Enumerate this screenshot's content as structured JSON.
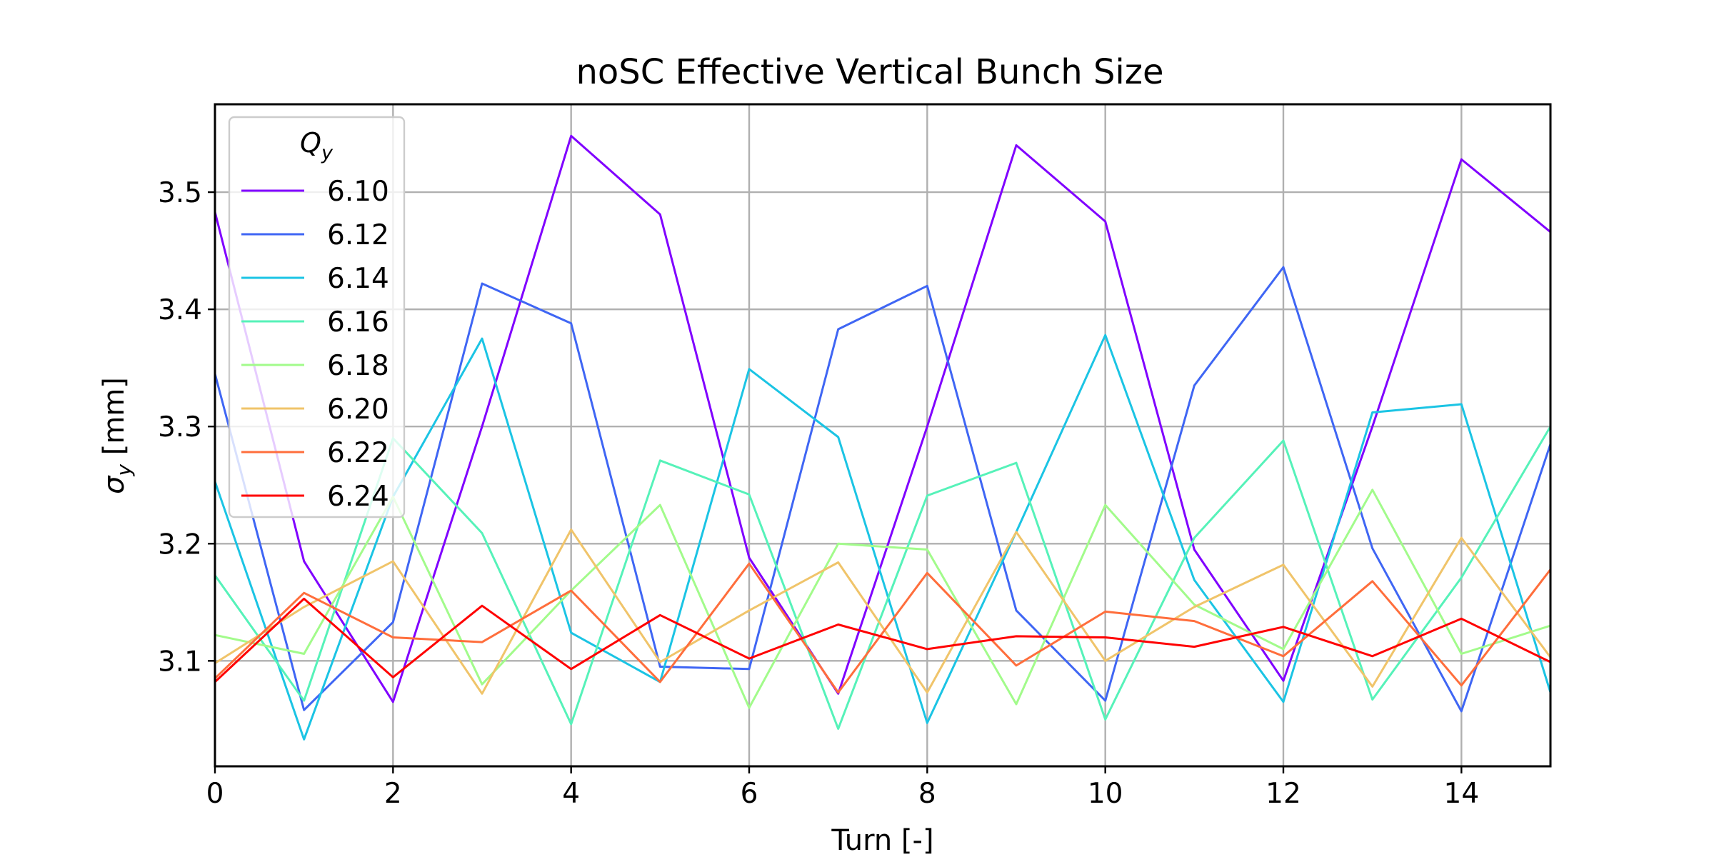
{
  "chart_data": {
    "type": "line",
    "title": "noSC Effective Vertical Bunch Size",
    "xlabel": "Turn [-]",
    "ylabel_main": "σ",
    "ylabel_sub": "y",
    "ylabel_unit": " [mm]",
    "xlim": [
      0,
      15
    ],
    "ylim": [
      3.01,
      3.575
    ],
    "xticks": [
      0,
      2,
      4,
      6,
      8,
      10,
      12,
      14
    ],
    "yticks": [
      3.1,
      3.2,
      3.3,
      3.4,
      3.5
    ],
    "ytick_labels": [
      "3.1",
      "3.2",
      "3.3",
      "3.4",
      "3.5"
    ],
    "grid": true,
    "legend": {
      "placement": "upper-left",
      "title_main": "Q",
      "title_sub": "y"
    },
    "x": [
      0,
      1,
      2,
      3,
      4,
      5,
      6,
      7,
      8,
      9,
      10,
      11,
      12,
      13,
      14,
      15
    ],
    "series": [
      {
        "name": "6.10",
        "color": "#8000ff",
        "values": [
          3.483,
          3.185,
          3.065,
          3.3,
          3.548,
          3.481,
          3.188,
          3.072,
          3.3,
          3.54,
          3.475,
          3.195,
          3.083,
          3.3,
          3.528,
          3.466
        ]
      },
      {
        "name": "6.12",
        "color": "#3f66f4",
        "values": [
          3.345,
          3.058,
          3.133,
          3.422,
          3.388,
          3.095,
          3.093,
          3.383,
          3.42,
          3.143,
          3.066,
          3.335,
          3.436,
          3.196,
          3.057,
          3.285
        ]
      },
      {
        "name": "6.14",
        "color": "#1bc4e4",
        "values": [
          3.253,
          3.033,
          3.24,
          3.375,
          3.124,
          3.082,
          3.349,
          3.291,
          3.047,
          3.21,
          3.378,
          3.169,
          3.065,
          3.312,
          3.319,
          3.073
        ]
      },
      {
        "name": "6.16",
        "color": "#56f2b9",
        "values": [
          3.173,
          3.066,
          3.29,
          3.209,
          3.046,
          3.271,
          3.242,
          3.042,
          3.241,
          3.269,
          3.05,
          3.205,
          3.288,
          3.067,
          3.171,
          3.3
        ]
      },
      {
        "name": "6.18",
        "color": "#a2fb8b",
        "values": [
          3.122,
          3.106,
          3.24,
          3.08,
          3.16,
          3.233,
          3.06,
          3.2,
          3.195,
          3.063,
          3.233,
          3.148,
          3.11,
          3.246,
          3.106,
          3.13
        ]
      },
      {
        "name": "6.20",
        "color": "#f0c46a",
        "values": [
          3.098,
          3.146,
          3.185,
          3.072,
          3.212,
          3.099,
          3.143,
          3.184,
          3.073,
          3.21,
          3.1,
          3.146,
          3.182,
          3.078,
          3.205,
          3.103
        ]
      },
      {
        "name": "6.22",
        "color": "#ff6e3c",
        "values": [
          3.085,
          3.158,
          3.12,
          3.116,
          3.16,
          3.082,
          3.183,
          3.073,
          3.175,
          3.096,
          3.142,
          3.134,
          3.104,
          3.168,
          3.079,
          3.178
        ]
      },
      {
        "name": "6.24",
        "color": "#ff0000",
        "values": [
          3.082,
          3.153,
          3.086,
          3.147,
          3.093,
          3.139,
          3.102,
          3.131,
          3.11,
          3.121,
          3.12,
          3.112,
          3.129,
          3.104,
          3.136,
          3.099
        ]
      }
    ]
  }
}
